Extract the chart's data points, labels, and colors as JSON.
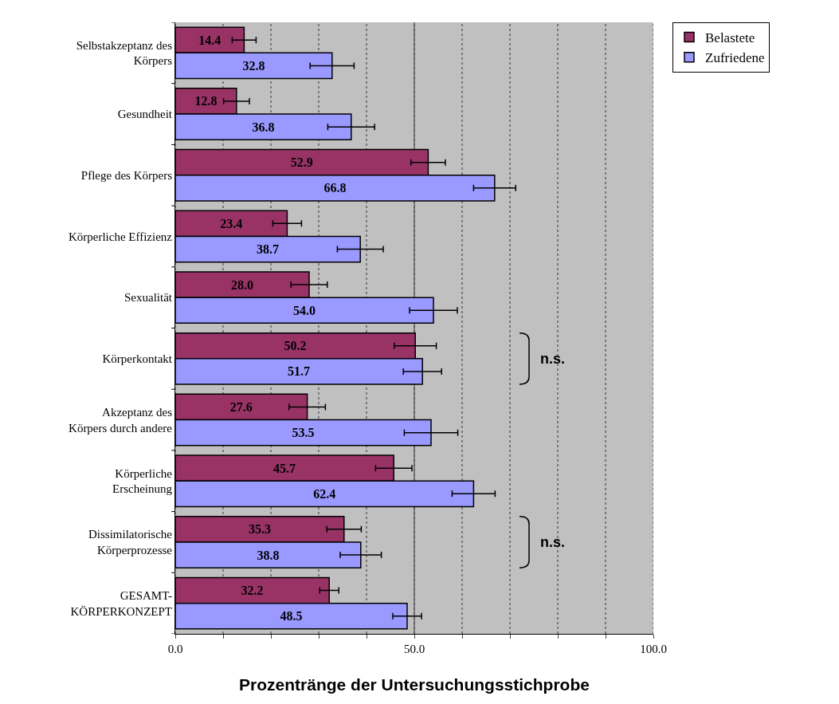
{
  "chart_data": {
    "type": "bar",
    "orientation": "horizontal",
    "xlabel": "Prozentränge der Untersuchungsstichprobe",
    "categories": [
      "Selbstakzeptanz des\nKörpers",
      "Gesundheit",
      "Pflege des Körpers",
      "Körperliche Effizienz",
      "Sexualität",
      "Körperkontakt",
      "Akzeptanz des\nKörpers durch andere",
      "Körperliche\nErscheinung",
      "Dissimilatorische\nKörperprozesse",
      "GESAMT-\nKÖRPERKONZEPT"
    ],
    "series": [
      {
        "name": "Belastete",
        "color": "#993366",
        "values": [
          14.4,
          12.8,
          52.9,
          23.4,
          28.0,
          50.2,
          27.6,
          45.7,
          35.3,
          32.2
        ],
        "value_labels": [
          "14.4",
          "12.8",
          "52.9",
          "23.4",
          "28.0",
          "50.2",
          "27.6",
          "45.7",
          "35.3",
          "32.2"
        ],
        "errors": [
          2.5,
          2.7,
          3.6,
          3.0,
          3.8,
          4.4,
          3.8,
          3.8,
          3.6,
          2.0
        ]
      },
      {
        "name": "Zufriedene",
        "color": "#9999ff",
        "values": [
          32.8,
          36.8,
          66.8,
          38.7,
          54.0,
          51.7,
          53.5,
          62.4,
          38.8,
          48.5
        ],
        "value_labels": [
          "32.8",
          "36.8",
          "66.8",
          "38.7",
          "54.0",
          "51.7",
          "53.5",
          "62.4",
          "38.8",
          "48.5"
        ],
        "errors": [
          4.6,
          4.9,
          4.4,
          4.8,
          5.0,
          4.0,
          5.6,
          4.5,
          4.3,
          3.0
        ]
      }
    ],
    "xlim": [
      0,
      100
    ],
    "xticks": [
      {
        "value": 0,
        "label": "0.0"
      },
      {
        "value": 10,
        "label": null
      },
      {
        "value": 20,
        "label": null
      },
      {
        "value": 30,
        "label": null
      },
      {
        "value": 40,
        "label": null
      },
      {
        "value": 50,
        "label": "50.0"
      },
      {
        "value": 60,
        "label": null
      },
      {
        "value": 70,
        "label": null
      },
      {
        "value": 80,
        "label": null
      },
      {
        "value": 90,
        "label": null
      },
      {
        "value": 100,
        "label": "100.0"
      }
    ],
    "grid": "x",
    "legend": "top right",
    "ref_lines": [
      {
        "axis": "x",
        "value": 50,
        "color": "#555555",
        "line_style": "solid"
      }
    ],
    "annotations": [
      "n.s.",
      "n.s."
    ]
  }
}
